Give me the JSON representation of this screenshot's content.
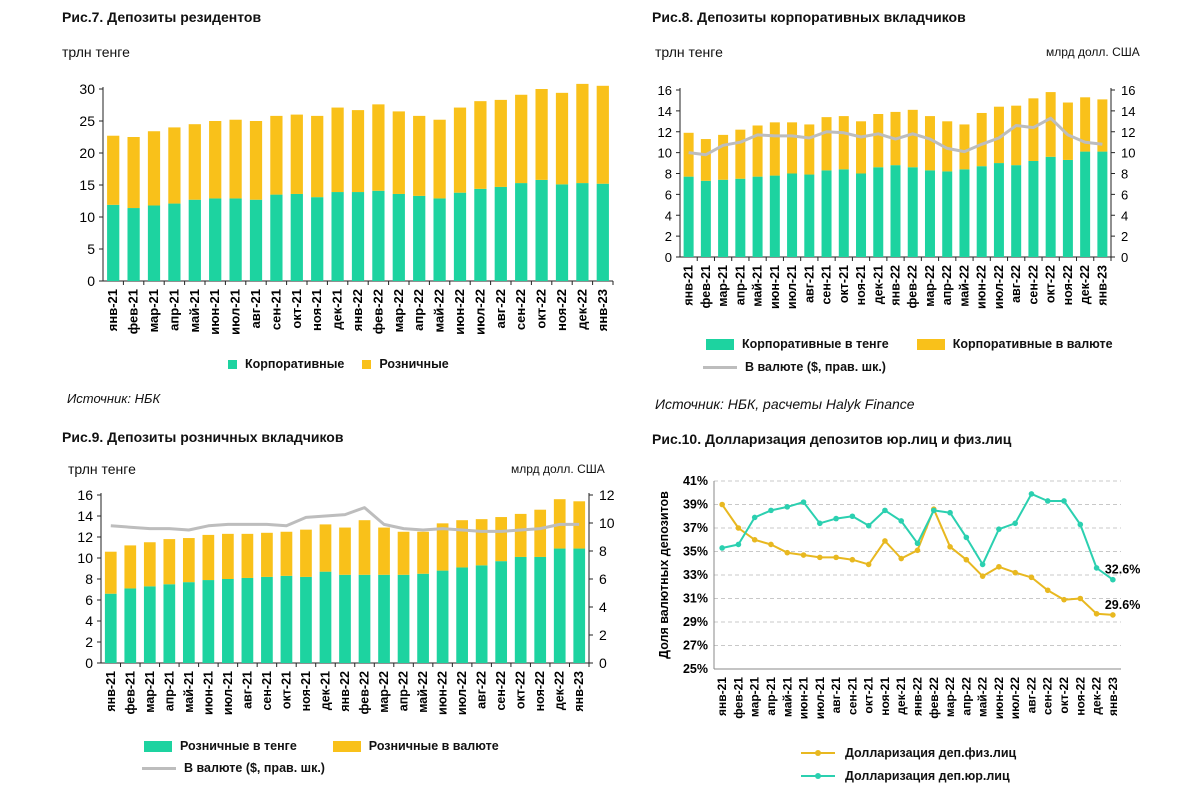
{
  "colors": {
    "green": "#1dd3a0",
    "yellow": "#f9c11a",
    "gray": "#bdbdbd",
    "line_green": "#2bd0b0",
    "line_yellow": "#e8b820"
  },
  "fig7": {
    "title": "Рис.7. Депозиты резидентов",
    "unit": "трлн тенге",
    "source": "Источник: НБК",
    "legend": [
      "Корпоративные",
      "Розничные"
    ]
  },
  "fig8": {
    "title": "Рис.8. Депозиты корпоративных вкладчиков",
    "unit_left": "трлн тенге",
    "unit_right": "млрд долл. США",
    "source": "Источник: НБК, расчеты Halyk Finance",
    "legend": [
      "Корпоративные в тенге",
      "Корпоративные в валюте",
      "В валюте ($, прав. шк.)"
    ]
  },
  "fig9": {
    "title": "Рис.9. Депозиты розничных вкладчиков",
    "unit_left": "трлн тенге",
    "unit_right": "млрд долл. США",
    "legend": [
      "Розничные в тенге",
      "Розничные в валюте",
      "В валюте ($, прав. шк.)"
    ]
  },
  "fig10": {
    "title": "Рис.10. Долларизация депозитов юр.лиц и физ.лиц",
    "ylabel": "Доля валютных депозитов",
    "legend": [
      "Долларизация деп.физ.лиц",
      "Долларизация деп.юр.лиц"
    ],
    "end_label_jur": "32.6%",
    "end_label_fiz": "29.6%"
  },
  "chart_data": [
    {
      "type": "bar",
      "stacked": true,
      "title": "Рис.7. Депозиты резидентов",
      "ylabel": "трлн тенге",
      "ylim": [
        0,
        30
      ],
      "yticks": [
        0,
        5,
        10,
        15,
        20,
        25,
        30
      ],
      "categories": [
        "янв-21",
        "фев-21",
        "мар-21",
        "апр-21",
        "май-21",
        "июн-21",
        "июл-21",
        "авг-21",
        "сен-21",
        "окт-21",
        "ноя-21",
        "дек-21",
        "янв-22",
        "фев-22",
        "мар-22",
        "апр-22",
        "май-22",
        "июн-22",
        "июл-22",
        "авг-22",
        "сен-22",
        "окт-22",
        "ноя-22",
        "дек-22",
        "янв-23"
      ],
      "series": [
        {
          "name": "Корпоративные",
          "values": [
            11.9,
            11.4,
            11.8,
            12.1,
            12.7,
            12.9,
            12.9,
            12.7,
            13.5,
            13.6,
            13.1,
            13.9,
            13.9,
            14.1,
            13.6,
            13.3,
            12.9,
            13.8,
            14.4,
            14.7,
            15.3,
            15.8,
            15.1,
            15.3,
            15.2
          ]
        },
        {
          "name": "Розничные",
          "values": [
            10.8,
            11.1,
            11.6,
            11.9,
            11.8,
            12.1,
            12.3,
            12.3,
            12.3,
            12.4,
            12.7,
            13.2,
            12.8,
            13.5,
            12.9,
            12.5,
            12.3,
            13.3,
            13.7,
            13.6,
            13.8,
            14.2,
            14.3,
            15.5,
            15.3
          ]
        }
      ]
    },
    {
      "type": "bar",
      "stacked": true,
      "title": "Рис.8. Депозиты корпоративных вкладчиков",
      "ylabel": "трлн тенге",
      "y2label": "млрд долл. США",
      "ylim": [
        0,
        16
      ],
      "y2lim": [
        0,
        16
      ],
      "yticks": [
        0,
        2,
        4,
        6,
        8,
        10,
        12,
        14,
        16
      ],
      "y2ticks": [
        0,
        2,
        4,
        6,
        8,
        10,
        12,
        14,
        16
      ],
      "categories": [
        "янв-21",
        "фев-21",
        "мар-21",
        "апр-21",
        "май-21",
        "июн-21",
        "июл-21",
        "авг-21",
        "сен-21",
        "окт-21",
        "ноя-21",
        "дек-21",
        "янв-22",
        "фев-22",
        "мар-22",
        "апр-22",
        "май-22",
        "июн-22",
        "июл-22",
        "авг-22",
        "сен-22",
        "окт-22",
        "ноя-22",
        "дек-22",
        "янв-23"
      ],
      "series": [
        {
          "name": "Корпоративные в тенге",
          "values": [
            7.7,
            7.3,
            7.4,
            7.5,
            7.7,
            7.8,
            8.0,
            7.9,
            8.3,
            8.4,
            8.0,
            8.6,
            8.8,
            8.6,
            8.3,
            8.2,
            8.4,
            8.7,
            9.0,
            8.8,
            9.2,
            9.6,
            9.3,
            10.1,
            10.1
          ]
        },
        {
          "name": "Корпоративные в валюте",
          "values": [
            4.2,
            4.0,
            4.3,
            4.7,
            4.9,
            5.1,
            4.9,
            4.8,
            5.1,
            5.1,
            5.0,
            5.1,
            5.1,
            5.5,
            5.2,
            4.8,
            4.3,
            5.1,
            5.4,
            5.7,
            6.0,
            6.2,
            5.5,
            5.2,
            5.0
          ]
        },
        {
          "name": "В валюте ($, прав. шк.)",
          "axis": "right",
          "values": [
            10.0,
            9.8,
            10.7,
            11.0,
            11.7,
            11.6,
            11.6,
            11.4,
            12.0,
            11.9,
            11.5,
            11.8,
            11.3,
            11.8,
            11.3,
            10.4,
            10.1,
            10.8,
            11.4,
            12.6,
            12.4,
            13.3,
            11.7,
            11.0,
            10.8
          ]
        }
      ]
    },
    {
      "type": "bar",
      "stacked": true,
      "title": "Рис.9. Депозиты розничных вкладчиков",
      "ylabel": "трлн тенге",
      "y2label": "млрд долл. США",
      "ylim": [
        0,
        16
      ],
      "y2lim": [
        0,
        12
      ],
      "yticks": [
        0,
        2,
        4,
        6,
        8,
        10,
        12,
        14,
        16
      ],
      "y2ticks": [
        0,
        2,
        4,
        6,
        8,
        10,
        12
      ],
      "categories": [
        "янв-21",
        "фев-21",
        "мар-21",
        "апр-21",
        "май-21",
        "июн-21",
        "июл-21",
        "авг-21",
        "сен-21",
        "окт-21",
        "ноя-21",
        "дек-21",
        "янв-22",
        "фев-22",
        "мар-22",
        "апр-22",
        "май-22",
        "июн-22",
        "июл-22",
        "авг-22",
        "сен-22",
        "окт-22",
        "ноя-22",
        "дек-22",
        "янв-23"
      ],
      "series": [
        {
          "name": "Розничные в тенге",
          "values": [
            6.6,
            7.1,
            7.3,
            7.5,
            7.7,
            7.9,
            8.0,
            8.1,
            8.2,
            8.3,
            8.2,
            8.7,
            8.4,
            8.4,
            8.4,
            8.4,
            8.5,
            8.8,
            9.1,
            9.3,
            9.7,
            10.1,
            10.1,
            10.9,
            10.9
          ]
        },
        {
          "name": "Розничные в валюте",
          "values": [
            4.0,
            4.1,
            4.2,
            4.3,
            4.2,
            4.3,
            4.3,
            4.2,
            4.2,
            4.2,
            4.5,
            4.5,
            4.5,
            5.2,
            4.5,
            4.1,
            4.0,
            4.5,
            4.5,
            4.4,
            4.2,
            4.1,
            4.5,
            4.7,
            4.5
          ]
        },
        {
          "name": "В валюте ($, прав. шк.)",
          "axis": "right",
          "values": [
            9.8,
            9.7,
            9.6,
            9.6,
            9.5,
            9.8,
            9.9,
            9.9,
            9.9,
            9.8,
            10.4,
            10.5,
            10.6,
            11.1,
            9.9,
            9.6,
            9.5,
            9.6,
            9.5,
            9.4,
            9.4,
            9.5,
            9.6,
            9.9,
            9.9
          ]
        }
      ]
    },
    {
      "type": "line",
      "title": "Рис.10. Долларизация депозитов юр.лиц и физ.лиц",
      "ylabel": "Доля валютных депозитов",
      "ylim": [
        25,
        41
      ],
      "yticks": [
        "25%",
        "27%",
        "29%",
        "31%",
        "33%",
        "35%",
        "37%",
        "39%",
        "41%"
      ],
      "categories": [
        "янв-21",
        "фев-21",
        "мар-21",
        "апр-21",
        "май-21",
        "июн-21",
        "июл-21",
        "авг-21",
        "сен-21",
        "окт-21",
        "ноя-21",
        "дек-21",
        "янв-22",
        "фев-22",
        "мар-22",
        "апр-22",
        "май-22",
        "июн-22",
        "июл-22",
        "авг-22",
        "сен-22",
        "окт-22",
        "ноя-22",
        "дек-22",
        "янв-23"
      ],
      "series": [
        {
          "name": "Долларизация деп.физ.лиц",
          "values": [
            39.0,
            37.0,
            36.0,
            35.6,
            34.9,
            34.7,
            34.5,
            34.5,
            34.3,
            33.9,
            35.9,
            34.4,
            35.1,
            38.6,
            35.4,
            34.3,
            32.9,
            33.7,
            33.2,
            32.8,
            31.7,
            30.9,
            31.0,
            29.7,
            29.6
          ]
        },
        {
          "name": "Долларизация деп.юр.лиц",
          "values": [
            35.3,
            35.6,
            37.9,
            38.5,
            38.8,
            39.2,
            37.4,
            37.8,
            38.0,
            37.2,
            38.5,
            37.6,
            35.7,
            38.5,
            38.3,
            36.2,
            33.9,
            36.9,
            37.4,
            39.9,
            39.3,
            39.3,
            37.3,
            33.6,
            32.6
          ]
        }
      ]
    }
  ]
}
